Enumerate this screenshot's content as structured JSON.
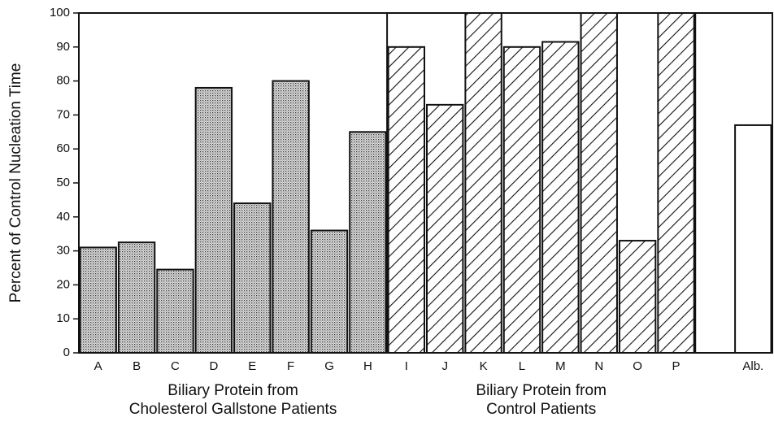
{
  "chart_data": {
    "type": "bar",
    "y_label": "Percent of Control Nucleation Time",
    "ylim": [
      0,
      100
    ],
    "yticks": [
      0,
      10,
      20,
      30,
      40,
      50,
      60,
      70,
      80,
      90,
      100
    ],
    "grid": false,
    "groups": [
      {
        "label": [
          "Biliary Protein from",
          "Cholesterol Gallstone Patients"
        ],
        "pattern": "dots",
        "categories": [
          "A",
          "B",
          "C",
          "D",
          "E",
          "F",
          "G",
          "H"
        ],
        "values": [
          31,
          32.5,
          24.5,
          78,
          44,
          80,
          36,
          65
        ]
      },
      {
        "label": [
          "Biliary Protein from",
          "Control Patients"
        ],
        "pattern": "hatch",
        "categories": [
          "I",
          "J",
          "K",
          "L",
          "M",
          "N",
          "O",
          "P"
        ],
        "values": [
          90,
          73,
          100,
          90,
          91.5,
          100,
          33,
          100
        ]
      },
      {
        "pattern": "none",
        "categories": [
          "Alb."
        ],
        "values": [
          67
        ]
      }
    ]
  }
}
